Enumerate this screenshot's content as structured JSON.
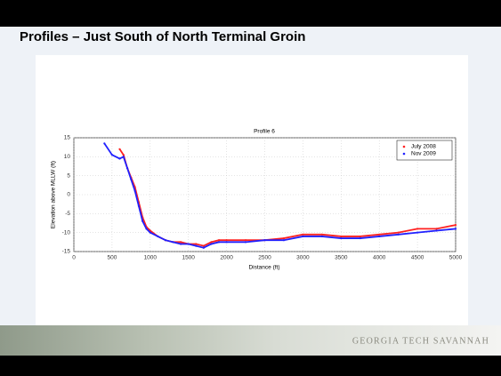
{
  "slide_title": "Profiles – Just South of North Terminal Groin",
  "footer": "GEORGIA TECH SAVANNAH",
  "chart_data": {
    "type": "line",
    "title": "Profile 6",
    "x_label": "Distance (ft)",
    "y_label": "Elevation above MLLW (ft)",
    "x": [
      400,
      500,
      600,
      650,
      700,
      750,
      800,
      850,
      900,
      950,
      1000,
      1100,
      1200,
      1300,
      1400,
      1500,
      1600,
      1700,
      1800,
      1900,
      2000,
      2250,
      2500,
      2750,
      3000,
      3250,
      3500,
      3750,
      4000,
      4250,
      4500,
      4750,
      5000
    ],
    "series": [
      {
        "name": "July 2008",
        "color": "#ff2020",
        "values": [
          null,
          null,
          12,
          10.5,
          7,
          4.5,
          2,
          -2,
          -6,
          -8.5,
          -9.5,
          -11,
          -12,
          -12.5,
          -12.5,
          -13,
          -13,
          -13.5,
          -12.5,
          -12,
          -12,
          -12,
          -12,
          -11.5,
          -10.5,
          -10.5,
          -11,
          -11,
          -10.5,
          -10,
          -9,
          -9,
          -8
        ]
      },
      {
        "name": "Nov 2009",
        "color": "#2020ff",
        "values": [
          13.5,
          10.5,
          9.5,
          10,
          7,
          4,
          1,
          -3,
          -7,
          -9,
          -10,
          -11,
          -12,
          -12.5,
          -13,
          -13,
          -13.5,
          -14,
          -13,
          -12.5,
          -12.5,
          -12.5,
          -12,
          -12,
          -11,
          -11,
          -11.5,
          -11.5,
          -11,
          -10.5,
          -10,
          -9.5,
          -9
        ]
      }
    ],
    "xlim": [
      0,
      5000
    ],
    "xticks": [
      0,
      500,
      1000,
      1500,
      2000,
      2500,
      3000,
      3500,
      4000,
      4500,
      5000
    ],
    "ylim": [
      -15,
      15
    ],
    "yticks": [
      -15,
      -10,
      -5,
      0,
      5,
      10,
      15
    ],
    "grid": true,
    "legend": "upper right"
  }
}
